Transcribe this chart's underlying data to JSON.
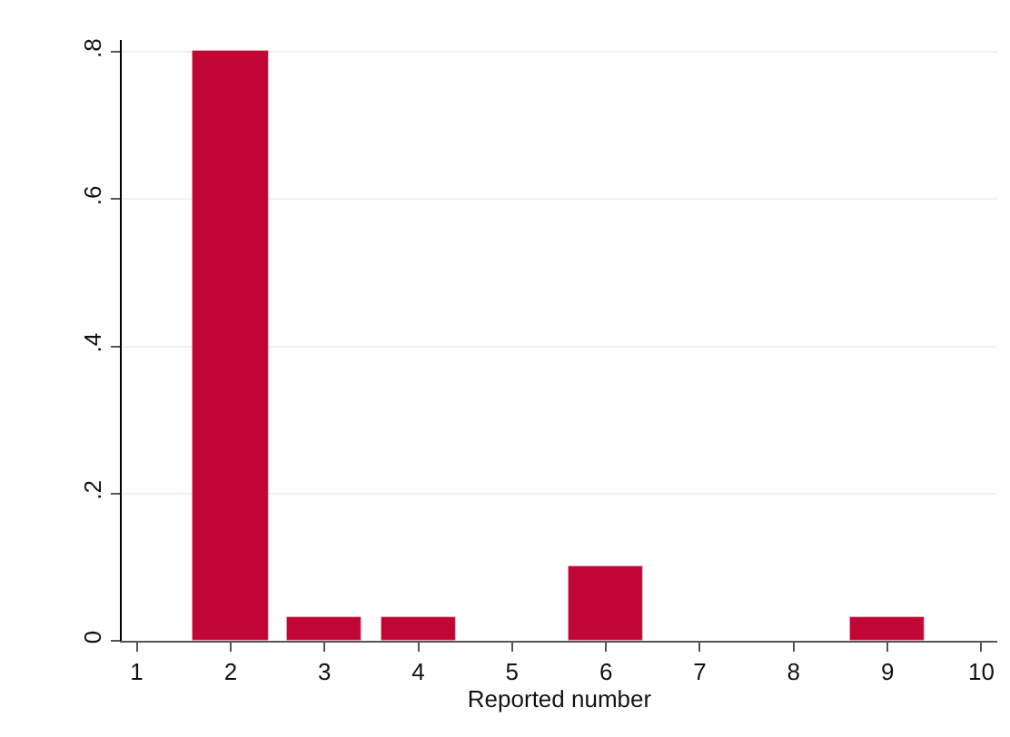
{
  "chart_data": {
    "type": "bar",
    "xlabel": "Reported number",
    "x": [
      2,
      3,
      4,
      6,
      9
    ],
    "values": [
      0.8,
      0.033,
      0.033,
      0.1,
      0.033
    ],
    "color": "#c10534",
    "xlim": [
      0.84,
      10.17
    ],
    "xticks": [
      1,
      2,
      3,
      4,
      5,
      6,
      7,
      8,
      9,
      10
    ],
    "ylim": [
      0,
      0.816
    ],
    "yticks": [
      {
        "value": 0,
        "label": "0"
      },
      {
        "value": 0.2,
        "label": ".2"
      },
      {
        "value": 0.4,
        "label": ".4"
      },
      {
        "value": 0.6,
        "label": ".6"
      },
      {
        "value": 0.8,
        "label": ".8"
      }
    ],
    "grid": "y"
  }
}
